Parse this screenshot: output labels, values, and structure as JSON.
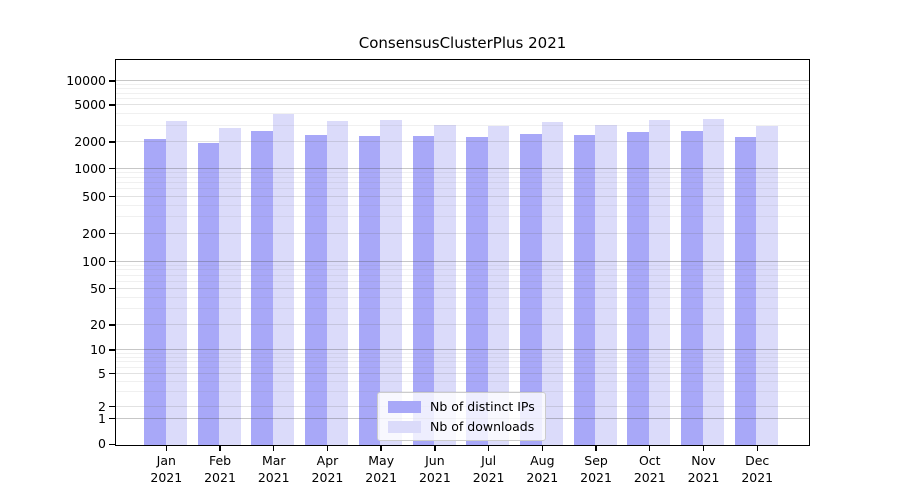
{
  "chart_data": {
    "type": "bar",
    "title": "ConsensusClusterPlus 2021",
    "year": "2021",
    "categories": [
      "Jan",
      "Feb",
      "Mar",
      "Apr",
      "May",
      "Jun",
      "Jul",
      "Aug",
      "Sep",
      "Oct",
      "Nov",
      "Dec"
    ],
    "series": [
      {
        "name": "Nb of distinct IPs",
        "color": "#a8a8f8",
        "values": [
          2200,
          2000,
          2650,
          2450,
          2350,
          2350,
          2300,
          2500,
          2400,
          2600,
          2700,
          2300
        ]
      },
      {
        "name": "Nb of downloads",
        "color": "#dbdbfa",
        "values": [
          3400,
          2900,
          4050,
          3450,
          3500,
          3100,
          3050,
          3350,
          3100,
          3550,
          3600,
          3000
        ]
      }
    ],
    "y_ticks": [
      10000,
      5000,
      2000,
      1000,
      500,
      200,
      100,
      50,
      20,
      10,
      5,
      2,
      1,
      0
    ],
    "yscale": "log (symlog, 0 at baseline)",
    "ylim": [
      0,
      13000
    ],
    "grid": true,
    "legend_position": "lower center",
    "xlabel": "",
    "ylabel": ""
  }
}
